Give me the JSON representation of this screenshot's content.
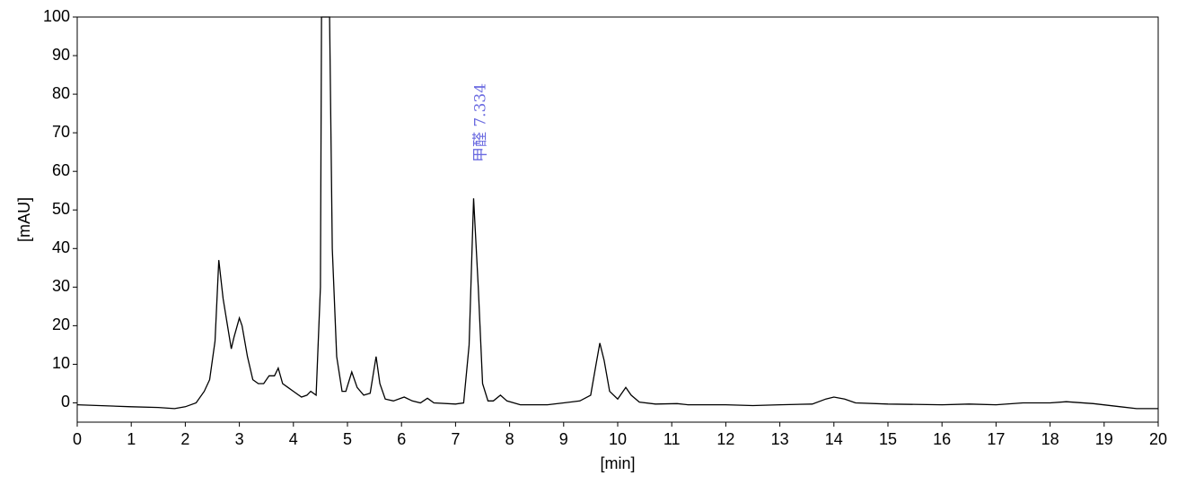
{
  "chart_data": {
    "type": "line",
    "annotation": "甲醛 7.334",
    "xlabel": "[min]",
    "ylabel": "[mAU]",
    "color": "#000000",
    "annotation_color": "#6b6be0",
    "x": [
      0,
      1,
      1.5,
      1.8,
      2.0,
      2.2,
      2.35,
      2.45,
      2.55,
      2.62,
      2.7,
      2.78,
      2.85,
      2.9,
      3.0,
      3.05,
      3.15,
      3.25,
      3.35,
      3.45,
      3.55,
      3.65,
      3.72,
      3.8,
      3.9,
      4.0,
      4.15,
      4.25,
      4.32,
      4.42,
      4.5,
      4.52,
      4.6,
      4.67,
      4.72,
      4.8,
      4.9,
      4.97,
      5.08,
      5.18,
      5.3,
      5.42,
      5.53,
      5.6,
      5.7,
      5.85,
      6.05,
      6.2,
      6.35,
      6.48,
      6.6,
      7.0,
      7.15,
      7.25,
      7.334,
      7.42,
      7.5,
      7.6,
      7.7,
      7.83,
      7.95,
      8.2,
      8.7,
      9.0,
      9.3,
      9.5,
      9.6,
      9.67,
      9.75,
      9.85,
      10.0,
      10.15,
      10.25,
      10.4,
      10.7,
      11.1,
      11.3,
      12.0,
      12.5,
      13.0,
      13.6,
      13.85,
      14.0,
      14.2,
      14.4,
      15.0,
      16.0,
      16.5,
      17.0,
      17.5,
      18.0,
      18.3,
      18.8,
      19.3,
      19.6,
      20
    ],
    "values": [
      -0.5,
      -1,
      -1.2,
      -1.5,
      -1,
      0,
      3,
      6,
      16,
      37,
      27,
      20,
      14,
      17,
      22,
      20,
      12,
      6,
      5,
      5,
      7,
      7,
      9,
      5,
      4,
      3,
      1.5,
      2,
      3,
      2,
      30,
      100,
      100,
      100,
      40,
      12,
      3,
      3,
      8,
      4,
      2,
      2.5,
      12,
      5,
      1,
      0.5,
      1.5,
      0.5,
      0,
      1.2,
      0,
      -0.3,
      0,
      15,
      53,
      30,
      5,
      0.5,
      0.5,
      2,
      0.5,
      -0.5,
      -0.5,
      0,
      0.5,
      2,
      10,
      15.5,
      11,
      3,
      1,
      4,
      2,
      0.2,
      -0.3,
      -0.2,
      -0.5,
      -0.5,
      -0.7,
      -0.5,
      -0.3,
      1,
      1.5,
      1,
      0,
      -0.3,
      -0.5,
      -0.3,
      -0.5,
      0,
      0,
      0.3,
      -0.2,
      -1,
      -1.5,
      -1.5
    ],
    "xlim": [
      0,
      20
    ],
    "xticks": [
      0,
      1,
      2,
      3,
      4,
      5,
      6,
      7,
      8,
      9,
      10,
      11,
      12,
      13,
      14,
      15,
      16,
      17,
      18,
      19,
      20
    ],
    "ylim": [
      -5,
      100
    ],
    "yticks": [
      0,
      10,
      20,
      30,
      40,
      50,
      60,
      70,
      80,
      90,
      100
    ]
  }
}
